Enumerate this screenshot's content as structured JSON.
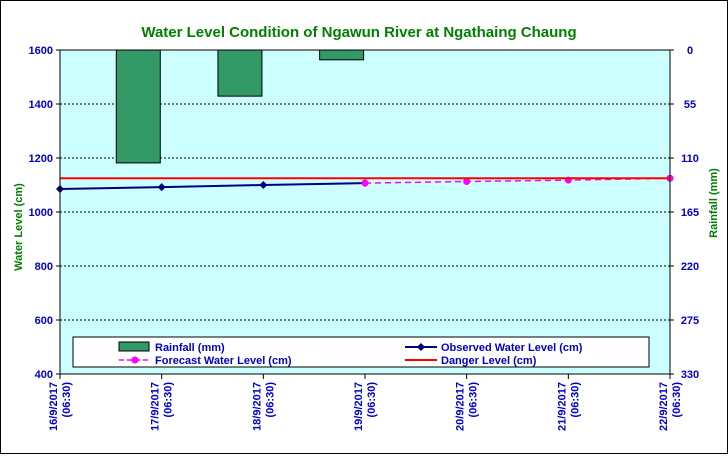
{
  "chart_data": {
    "type": "combo",
    "title": "Water Level Condition of Ngawun  River at  Ngathaing Chaung",
    "colors": {
      "title": "#008000",
      "plot_bg": "#ccffff",
      "axis_text": "#0000cc",
      "rain_axis_text": "#0000cc",
      "y1_label": "#008000",
      "y2_label": "#008000",
      "rainfall": "#339966",
      "observed": "#000080",
      "forecast": "#ff00ff",
      "danger": "#ff0000",
      "grid": "#000000"
    },
    "y1": {
      "label": "Water Level (cm)",
      "min": 400,
      "max": 1600,
      "ticks": [
        "400",
        "600",
        "800",
        "1000",
        "1200",
        "1400",
        "1600"
      ]
    },
    "y2": {
      "label": "Rainfall (mm)",
      "min": 0,
      "max": 330,
      "inverted": true,
      "ticks": [
        "0",
        "55",
        "110",
        "165",
        "220",
        "275",
        "330"
      ]
    },
    "x": {
      "index_min": 0,
      "index_max": 6,
      "categories": [
        {
          "date": "16/9/2017",
          "time": "(06:30)"
        },
        {
          "date": "17/9/2017",
          "time": "(06:30)"
        },
        {
          "date": "18/9/2017",
          "time": "(06:30)"
        },
        {
          "date": "19/9/2017",
          "time": "(06:30)"
        },
        {
          "date": "20/9/2017",
          "time": "(06:30)"
        },
        {
          "date": "21/9/2017",
          "time": "(06:30)"
        },
        {
          "date": "22/9/2017",
          "time": "(06:30)"
        }
      ]
    },
    "series": [
      {
        "name": "Rainfall (mm)",
        "kind": "bar",
        "axis": "y2",
        "x_index": [
          0.77,
          1.77,
          2.77
        ],
        "values": [
          115,
          47,
          10
        ]
      },
      {
        "name": "Observed Water Level (cm)",
        "kind": "line",
        "axis": "y1",
        "x_index": [
          0,
          1,
          2,
          3
        ],
        "values": [
          1085,
          1092,
          1100,
          1107
        ]
      },
      {
        "name": "Forecast Water Level (cm)",
        "kind": "dashed-line",
        "axis": "y1",
        "x_index": [
          3,
          4,
          5,
          6
        ],
        "values": [
          1107,
          1113,
          1118,
          1125
        ]
      },
      {
        "name": "Danger Level (cm)",
        "kind": "hline",
        "axis": "y1",
        "x_index": [
          0,
          6
        ],
        "values": [
          1125,
          1125
        ]
      }
    ],
    "legend": {
      "position": "bottom-inside",
      "items": [
        {
          "label": "Rainfall (mm)",
          "kind": "bar"
        },
        {
          "label": "Observed Water Level (cm)",
          "kind": "line"
        },
        {
          "label": "Forecast Water Level (cm)",
          "kind": "dashed-line"
        },
        {
          "label": "Danger Level (cm)",
          "kind": "hline"
        }
      ]
    }
  }
}
